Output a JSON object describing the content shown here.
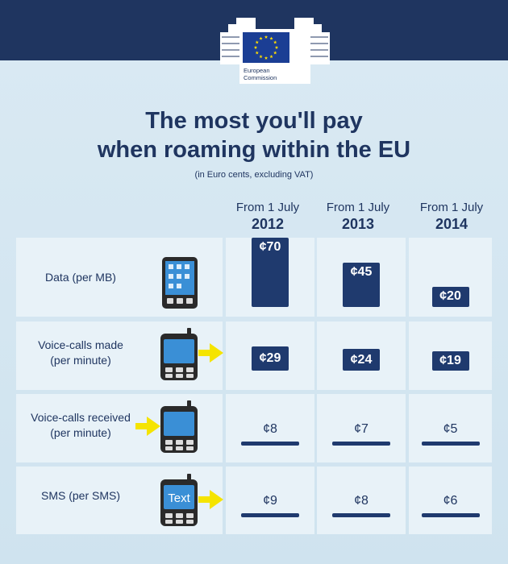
{
  "logo": {
    "line1": "European",
    "line2": "Commission"
  },
  "title": {
    "line1": "The most you'll pay",
    "line2": "when roaming within the EU"
  },
  "subtitle": "(in Euro cents, excluding VAT)",
  "colors": {
    "navy": "#1f3560",
    "bar": "#1f3a6e",
    "arrow": "#f5e400",
    "bg": "#d7e8f2"
  },
  "chart_data": {
    "type": "bar",
    "title": "The most you'll pay when roaming within the EU",
    "subtitle": "(in Euro cents, excluding VAT)",
    "categories": [
      "From 1 July 2012",
      "From 1 July 2013",
      "From 1 July 2014"
    ],
    "category_parts": [
      {
        "l1": "From 1 July",
        "l2": "2012"
      },
      {
        "l1": "From 1 July",
        "l2": "2013"
      },
      {
        "l1": "From 1 July",
        "l2": "2014"
      }
    ],
    "series": [
      {
        "name": "Data (per MB)",
        "label_lines": [
          "Data (per MB)"
        ],
        "icon": "smartphone-icon",
        "values": [
          70,
          45,
          20
        ],
        "labels": [
          "¢70",
          "¢45",
          "¢20"
        ]
      },
      {
        "name": "Voice-calls made (per minute)",
        "label_lines": [
          "Voice-calls made",
          "(per minute)"
        ],
        "icon": "mobile-phone-outgoing-icon",
        "values": [
          29,
          24,
          19
        ],
        "labels": [
          "¢29",
          "¢24",
          "¢19"
        ]
      },
      {
        "name": "Voice-calls received (per minute)",
        "label_lines": [
          "Voice-calls received",
          "(per minute)"
        ],
        "icon": "mobile-phone-incoming-icon",
        "values": [
          8,
          7,
          5
        ],
        "labels": [
          "¢8",
          "¢7",
          "¢5"
        ]
      },
      {
        "name": "SMS (per SMS)",
        "label_lines": [
          "SMS (per SMS)"
        ],
        "icon": "sms-phone-icon",
        "icon_text": "Text",
        "values": [
          9,
          8,
          6
        ],
        "labels": [
          "¢9",
          "¢8",
          "¢6"
        ]
      }
    ]
  }
}
